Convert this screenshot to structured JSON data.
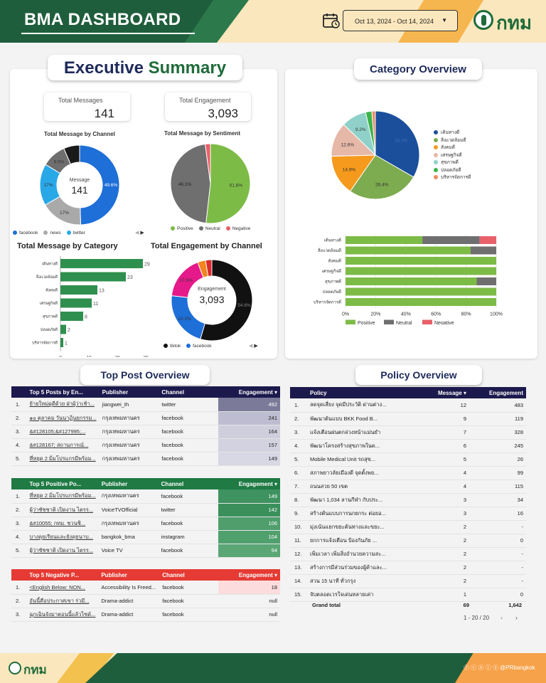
{
  "header": {
    "title": "BMA DASHBOARD",
    "date_range": "Oct 13, 2024 - Oct 14, 2024",
    "logo_text": "กทม"
  },
  "executive": {
    "title_part1": "Executive",
    "title_part2": "Summary",
    "total_messages_label": "Total Messages",
    "total_messages_value": "141",
    "total_engagement_label": "Total Engagement",
    "total_engagement_value": "3,093",
    "channel_title": "Total Message by Channel",
    "sentiment_title": "Total Message by Sentiment",
    "category_title": "Total Message by Category",
    "engagement_channel_title": "Total Engagement by Channel",
    "donut1_center_label": "Message",
    "donut1_center_value": "141",
    "donut2_center_label": "Engagement",
    "donut2_center_value": "3,093"
  },
  "category_overview": {
    "title": "Category Overview"
  },
  "top_post": {
    "title": "Top Post Overview",
    "top5": {
      "headers": [
        "Top 5 Posts by En...",
        "Publisher",
        "Channel",
        "Engagement ▾"
      ],
      "rows": [
        [
          "1.",
          "ย้ายใหม่ดูดีด้วย ฝ่าผู้ว่าเช้า...",
          "jiangwei_th",
          "twitter",
          "492"
        ],
        [
          "2.",
          "๑๐ ตุลาคม วันนาฏินยกรรม...",
          "กรุงเทพมหานคร",
          "facebook",
          "241"
        ],
        [
          "3.",
          "&#128105;&#127995;...",
          "กรุงเทพมหานคร",
          "facebook",
          "164"
        ],
        [
          "4.",
          "&#128167; สถานการณ์...",
          "กรุงเทพมหานคร",
          "facebook",
          "157"
        ],
        [
          "5.",
          "ที่หยุด 2 มิ่มโปรแกรมีพร้อม...",
          "กรุงเทพมหานคร",
          "facebook",
          "149"
        ]
      ]
    },
    "positive": {
      "headers": [
        "Top 5 Positive Po...",
        "Publisher",
        "Channel",
        "Engagement ▾"
      ],
      "rows": [
        [
          "1.",
          "ที่หยุด 2 มิ่มโปรแกรมีพร้อม...",
          "กรุงเทพมหานคร",
          "facebook",
          "149"
        ],
        [
          "2.",
          "ผู้ว่าชัชชาติ เปิดงาน ไตรร...",
          "VoiceTVOfficial",
          "twitter",
          "142"
        ],
        [
          "3.",
          "&#10055; กทม. ชวนชิ...",
          "กรุงเทพมหานคร",
          "facebook",
          "106"
        ],
        [
          "4.",
          "บางคุยเรียนและยังคุยนาบ...",
          "bangkok_bma",
          "instagram",
          "104"
        ],
        [
          "5.",
          "ผู้ว่าชัชชาติ เปิดงาน ไตรร...",
          "Voice TV",
          "facebook",
          "94"
        ]
      ]
    },
    "negative": {
      "headers": [
        "Top 5 Negative P...",
        "Publisher",
        "Channel",
        "Engagement ▾"
      ],
      "rows": [
        [
          "1.",
          "<English Below: NON...",
          "Accessibility Is Freed...",
          "facebook",
          "18"
        ],
        [
          "2.",
          "อันนี้คือประกาศเขา ร่วมี...",
          "Drama-addict",
          "facebook",
          "null"
        ],
        [
          "3.",
          "ฉุกเฉินจังมาตอนนี้แล้วไซด์...",
          "Drama-addict",
          "facebook",
          "null"
        ]
      ]
    }
  },
  "policy": {
    "title": "Policy Overview",
    "headers": [
      "Policy",
      "Message ▾",
      "Engagement"
    ],
    "rows": [
      [
        "1.",
        "ลดจุดเสี่ยง จุดมีประวัติ ด่านต่าง...",
        "12",
        "483"
      ],
      [
        "2.",
        "พัฒนาต้นแบบ BKK Food B...",
        "9",
        "119"
      ],
      [
        "3.",
        "แจ้งเตือนฝนตกล่วงหน้าแม่นยำ",
        "7",
        "328"
      ],
      [
        "4.",
        "พัฒนาโครงสร้างสุขภาพในด...",
        "6",
        "245"
      ],
      [
        "5.",
        "Mobile Medical Unit รถสุข...",
        "5",
        "26"
      ],
      [
        "6.",
        "สภาพยาวลัยเมืองดี จุดตั้งพย...",
        "4",
        "99"
      ],
      [
        "7.",
        "ถนนสวย 50 เขต",
        "4",
        "115"
      ],
      [
        "8.",
        "พัฒนา 1,034 ลานกีฬา กับประ...",
        "3",
        "34"
      ],
      [
        "9.",
        "สร้างต้นแบบการนกยกระ ต่อยอ...",
        "3",
        "16"
      ],
      [
        "10.",
        "มุ่งเน้นแยกขยะต้นทางและขยะ...",
        "2",
        "-"
      ],
      [
        "11.",
        "ยกการแจ้งเตือน ป้องกันภัย ...",
        "2",
        "0"
      ],
      [
        "12.",
        "เพิ่มเวลา เพิ่มสิ่งอำนวยความสะ...",
        "2",
        "-"
      ],
      [
        "13.",
        "สร้างการมีส่วนร่วมของผู้ค้าและ...",
        "2",
        "-"
      ],
      [
        "14.",
        "สวน 15 นาที ทั่วกรุง",
        "2",
        "-"
      ],
      [
        "15.",
        "จับตลอดเวรใจเด่นหลายเค่า",
        "1",
        "0"
      ]
    ],
    "grand_total_label": "Grand total",
    "grand_total_message": "69",
    "grand_total_engagement": "1,642",
    "pagination": "1 - 20 / 20"
  },
  "footer": {
    "logo_text": "กทม",
    "social": "@PRbangkok"
  },
  "chart_data": [
    {
      "type": "pie",
      "title": "Total Message by Channel",
      "labels": [
        "facebook",
        "news",
        "twitter",
        "other-1",
        "other-2"
      ],
      "values": [
        49.6,
        17,
        17,
        9.9,
        6.5
      ],
      "colors": [
        "#1e6fd8",
        "#a9a9a9",
        "#29a8e8",
        "#6e6e6e",
        "#1a1a1a"
      ],
      "legend": [
        "facebook",
        "news",
        "twitter"
      ],
      "slice_labels": [
        "49.6%",
        "17%",
        "17%",
        "9.9%",
        ""
      ]
    },
    {
      "type": "pie",
      "title": "Total Message by Sentiment",
      "labels": [
        "Positive",
        "Neutral",
        "Negative"
      ],
      "values": [
        51.8,
        46.1,
        2.1
      ],
      "colors": [
        "#7dbb47",
        "#6f6f6f",
        "#e8606a"
      ],
      "slice_labels": [
        "51.8%",
        "46.1%",
        ""
      ]
    },
    {
      "type": "bar",
      "title": "Total Message by Category",
      "categories": [
        "เดินทางดี",
        "สิ่งแวดล้อมดี",
        "สังคมดี",
        "เศรษฐกิจดี",
        "สุขภาพดี",
        "ปลอดภัยดี",
        "บริหารจัดการดี"
      ],
      "values": [
        29,
        23,
        13,
        11,
        8,
        2,
        1
      ],
      "xlim": [
        0,
        30
      ],
      "xticks": [
        "0",
        "10",
        "20",
        "30"
      ],
      "color": "#2f8f4e"
    },
    {
      "type": "pie",
      "title": "Total Engagement by Channel",
      "labels": [
        "tiktok",
        "facebook",
        "other-1",
        "other-2",
        "other-3"
      ],
      "values": [
        54.6,
        22.2,
        17.5,
        3.2,
        2.5
      ],
      "colors": [
        "#111111",
        "#1e6fd8",
        "#e6198a",
        "#f3841e",
        "#dd2a2a"
      ],
      "legend": [
        "tiktok",
        "facebook"
      ],
      "slice_labels": [
        "54.6%",
        "22.2%",
        "17.5%",
        "",
        ""
      ]
    },
    {
      "type": "pie",
      "title": "Category Overview",
      "labels": [
        "เดินทางดี",
        "สิ่งแวดล้อมดี",
        "สังคมดี",
        "เศรษฐกิจดี",
        "สุขภาพดี",
        "ปลอดภัยดี",
        "บริหารจัดการดี"
      ],
      "values": [
        33.3,
        26.4,
        14.9,
        12.6,
        9.2,
        2.3,
        1.3
      ],
      "colors": [
        "#1b4f9c",
        "#7dab4f",
        "#f59a1c",
        "#e5b8a8",
        "#8fd1c9",
        "#3cb44b",
        "#ef8a62"
      ],
      "slice_labels": [
        "33.3%",
        "26.4%",
        "14.9%",
        "12.6%",
        "9.2%",
        "",
        ""
      ]
    },
    {
      "type": "bar",
      "stacked": true,
      "horizontal": true,
      "categories": [
        "เดินทางดี",
        "สิ่งแวดล้อมดี",
        "สังคมดี",
        "เศรษฐกิจดี",
        "สุขภาพดี",
        "ปลอดภัยดี",
        "บริหารจัดการดี"
      ],
      "series": [
        {
          "name": "Positive",
          "color": "#7dbb47",
          "values": [
            51,
            83,
            100,
            100,
            87,
            100,
            100
          ]
        },
        {
          "name": "Neutral",
          "color": "#6f6f6f",
          "values": [
            38,
            17,
            0,
            0,
            13,
            0,
            0
          ]
        },
        {
          "name": "Negative",
          "color": "#e8606a",
          "values": [
            11,
            0,
            0,
            0,
            0,
            0,
            0
          ]
        }
      ],
      "xticks": [
        "0%",
        "20%",
        "40%",
        "60%",
        "80%",
        "100%"
      ],
      "xlim": [
        0,
        100
      ]
    }
  ]
}
